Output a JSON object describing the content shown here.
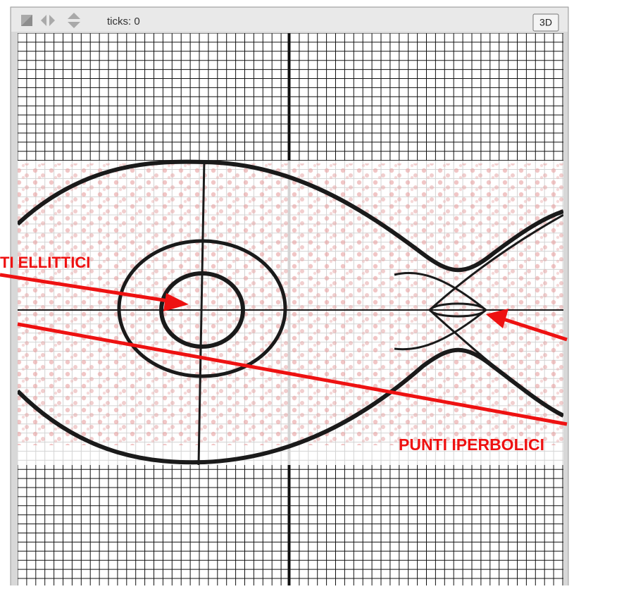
{
  "toolbar": {
    "ticks_label": "ticks: 0",
    "view_button": "3D"
  },
  "annotations": {
    "elliptic": "TI ELLITTICI",
    "hyperbolic": "PUNTI IPERBOLICI"
  }
}
